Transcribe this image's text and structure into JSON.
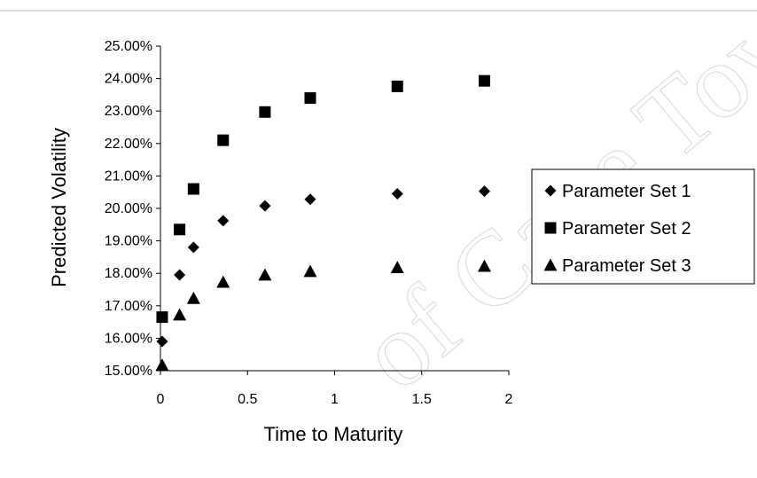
{
  "chart_data": {
    "type": "scatter",
    "title": "",
    "xlabel": "Time to Maturity",
    "ylabel": "Predicted Volatility",
    "xlim": [
      0,
      2
    ],
    "ylim": [
      0.15,
      0.25
    ],
    "x_ticks": [
      0,
      0.5,
      1,
      1.5,
      2
    ],
    "x_tick_labels": [
      "0",
      "0.5",
      "1",
      "1.5",
      "2"
    ],
    "y_ticks": [
      0.15,
      0.16,
      0.17,
      0.18,
      0.19,
      0.2,
      0.21,
      0.22,
      0.23,
      0.24,
      0.25
    ],
    "y_tick_labels": [
      "15.00%",
      "16.00%",
      "17.00%",
      "18.00%",
      "19.00%",
      "20.00%",
      "21.00%",
      "22.00%",
      "23.00%",
      "24.00%",
      "25.00%"
    ],
    "grid": false,
    "legend": "right",
    "series": [
      {
        "name": "Parameter Set 1",
        "marker": "diamond",
        "x": [
          0.01,
          0.11,
          0.19,
          0.36,
          0.6,
          0.86,
          1.36,
          1.86
        ],
        "y": [
          0.159,
          0.1795,
          0.188,
          0.1962,
          0.2008,
          0.2028,
          0.2045,
          0.2053
        ]
      },
      {
        "name": "Parameter Set 2",
        "marker": "square",
        "x": [
          0.01,
          0.11,
          0.19,
          0.36,
          0.6,
          0.86,
          1.36,
          1.86
        ],
        "y": [
          0.1665,
          0.1935,
          0.206,
          0.221,
          0.2297,
          0.234,
          0.2376,
          0.2393
        ]
      },
      {
        "name": "Parameter Set 3",
        "marker": "triangle",
        "x": [
          0.01,
          0.11,
          0.19,
          0.36,
          0.6,
          0.86,
          1.36,
          1.86
        ],
        "y": [
          0.1517,
          0.1672,
          0.1723,
          0.1773,
          0.1795,
          0.1806,
          0.1818,
          0.1822
        ]
      }
    ]
  },
  "watermark": "of Cape Town"
}
